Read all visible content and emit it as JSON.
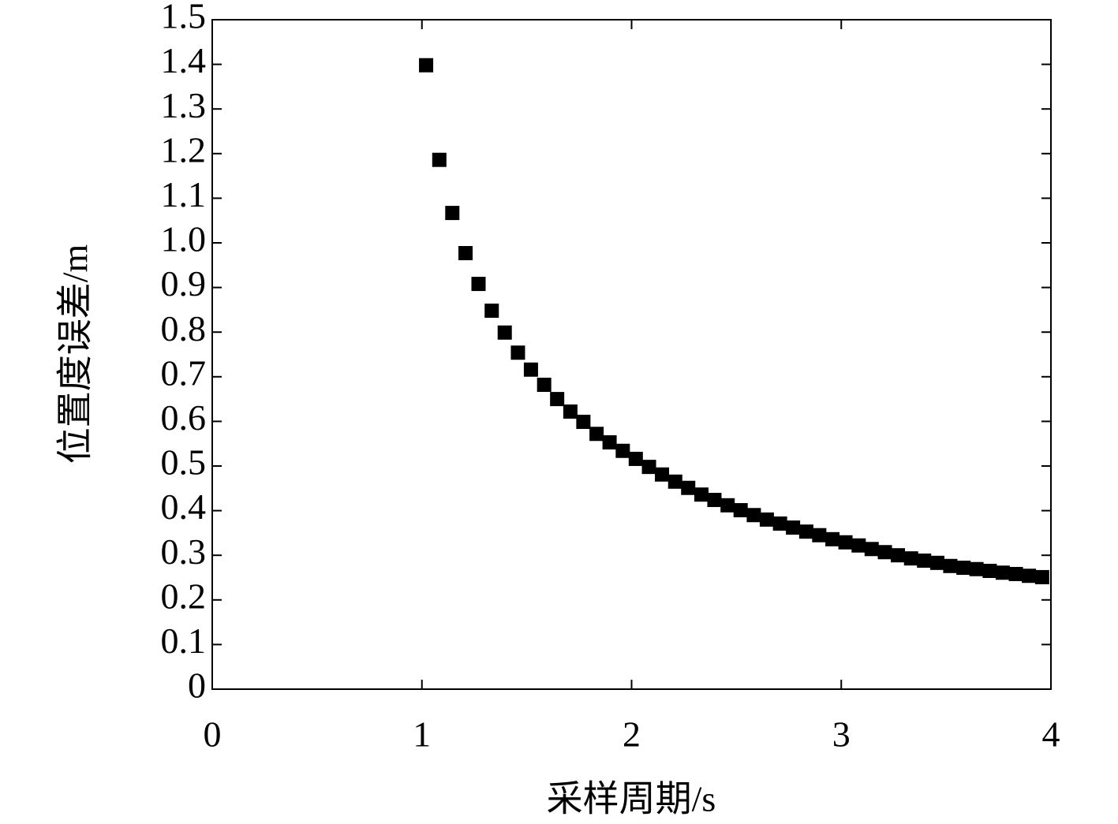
{
  "chart_data": {
    "type": "scatter",
    "x_label": "采样周期/s",
    "y_label": "位置度误差/m",
    "x": [
      1.02,
      1.083,
      1.145,
      1.208,
      1.27,
      1.333,
      1.395,
      1.458,
      1.52,
      1.583,
      1.645,
      1.708,
      1.77,
      1.833,
      1.895,
      1.958,
      2.02,
      2.083,
      2.145,
      2.208,
      2.27,
      2.333,
      2.395,
      2.458,
      2.52,
      2.583,
      2.645,
      2.708,
      2.77,
      2.833,
      2.895,
      2.958,
      3.02,
      3.083,
      3.145,
      3.208,
      3.27,
      3.333,
      3.395,
      3.458,
      3.52,
      3.583,
      3.645,
      3.708,
      3.77,
      3.833,
      3.895,
      3.958
    ],
    "values": [
      1.398,
      1.186,
      1.067,
      0.977,
      0.908,
      0.848,
      0.799,
      0.754,
      0.716,
      0.682,
      0.65,
      0.622,
      0.599,
      0.572,
      0.553,
      0.534,
      0.516,
      0.498,
      0.481,
      0.465,
      0.451,
      0.436,
      0.424,
      0.412,
      0.401,
      0.39,
      0.38,
      0.371,
      0.362,
      0.353,
      0.345,
      0.336,
      0.329,
      0.322,
      0.314,
      0.307,
      0.3,
      0.293,
      0.288,
      0.283,
      0.276,
      0.272,
      0.269,
      0.265,
      0.261,
      0.258,
      0.254,
      0.251
    ],
    "color": "#000000",
    "xlim": [
      0,
      4
    ],
    "xticks": [
      0,
      1,
      2,
      3,
      4
    ],
    "ylim": [
      0,
      1.5
    ],
    "yticks": [
      0,
      0.1,
      0.2,
      0.3,
      0.4,
      0.5,
      0.6,
      0.7,
      0.8,
      0.9,
      {
        "value": 1.0,
        "label": "1.0"
      },
      1.1,
      1.2,
      1.3,
      1.4,
      1.5
    ]
  }
}
